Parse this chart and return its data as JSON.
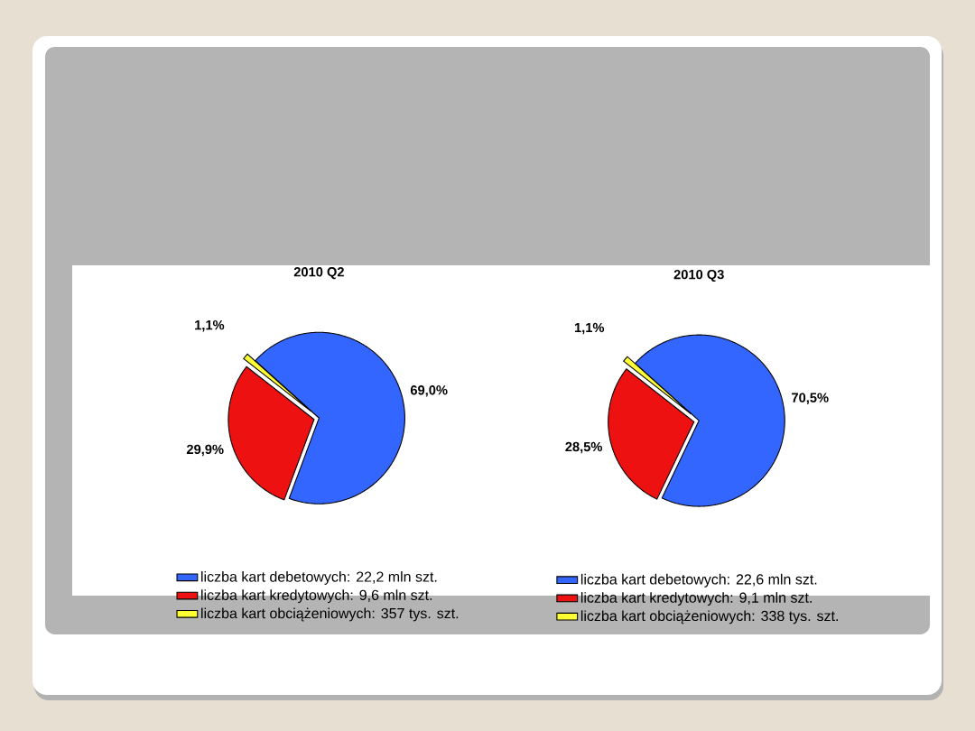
{
  "chart_data": [
    {
      "type": "pie",
      "title": "2010 Q2",
      "categories": [
        "liczba kart debetowych: 22,2 mln szt.",
        "liczba kart kredytowych: 9,6 mln szt.",
        "liczba kart obciążeniowych: 357 tys. szt."
      ],
      "values": [
        69.0,
        29.9,
        1.1
      ],
      "value_labels": [
        "69,0%",
        "29,9%",
        "1,1%"
      ],
      "colors": [
        "#3366ff",
        "#ee1111",
        "#ffff33"
      ],
      "legend": "bottom"
    },
    {
      "type": "pie",
      "title": "2010 Q3",
      "categories": [
        "liczba kart debetowych: 22,6 mln szt.",
        "liczba kart kredytowych: 9,1 mln szt.",
        "liczba kart obciążeniowych: 338 tys. szt."
      ],
      "values": [
        70.5,
        28.5,
        1.1
      ],
      "value_labels": [
        "70,5%",
        "28,5%",
        "1,1%"
      ],
      "colors": [
        "#3366ff",
        "#ee1111",
        "#ffff33"
      ],
      "legend": "bottom"
    }
  ]
}
